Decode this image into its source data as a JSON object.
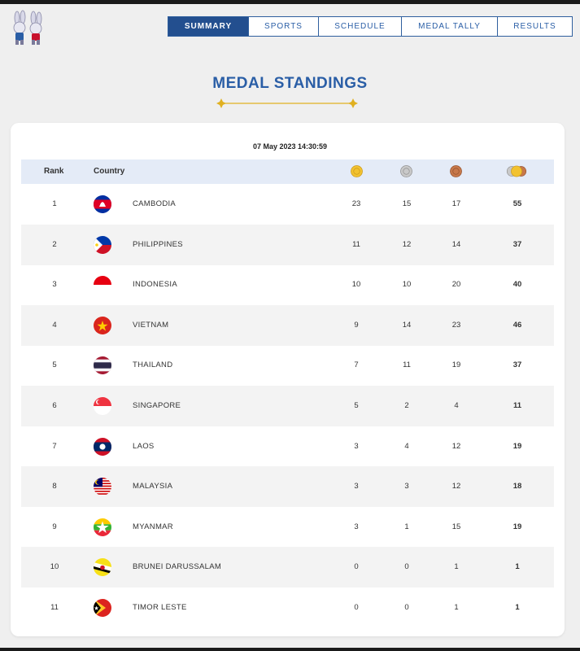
{
  "nav": {
    "tabs": [
      {
        "label": "SUMMARY",
        "active": true
      },
      {
        "label": "SPORTS",
        "active": false
      },
      {
        "label": "SCHEDULE",
        "active": false
      },
      {
        "label": "MEDAL TALLY",
        "active": false
      },
      {
        "label": "RESULTS",
        "active": false
      }
    ]
  },
  "page_title": "MEDAL STANDINGS",
  "timestamp": "07 May 2023  14:30:59",
  "table": {
    "headers": {
      "rank": "Rank",
      "country": "Country"
    },
    "medal_icons": [
      "gold-medal-icon",
      "silver-medal-icon",
      "bronze-medal-icon",
      "total-medals-icon"
    ],
    "rows": [
      {
        "rank": "1",
        "country": "CAMBODIA",
        "flag": "cambodia-flag-icon",
        "gold": "23",
        "silver": "15",
        "bronze": "17",
        "total": "55"
      },
      {
        "rank": "2",
        "country": "PHILIPPINES",
        "flag": "philippines-flag-icon",
        "gold": "11",
        "silver": "12",
        "bronze": "14",
        "total": "37"
      },
      {
        "rank": "3",
        "country": "INDONESIA",
        "flag": "indonesia-flag-icon",
        "gold": "10",
        "silver": "10",
        "bronze": "20",
        "total": "40"
      },
      {
        "rank": "4",
        "country": "VIETNAM",
        "flag": "vietnam-flag-icon",
        "gold": "9",
        "silver": "14",
        "bronze": "23",
        "total": "46"
      },
      {
        "rank": "5",
        "country": "THAILAND",
        "flag": "thailand-flag-icon",
        "gold": "7",
        "silver": "11",
        "bronze": "19",
        "total": "37"
      },
      {
        "rank": "6",
        "country": "SINGAPORE",
        "flag": "singapore-flag-icon",
        "gold": "5",
        "silver": "2",
        "bronze": "4",
        "total": "11"
      },
      {
        "rank": "7",
        "country": "LAOS",
        "flag": "laos-flag-icon",
        "gold": "3",
        "silver": "4",
        "bronze": "12",
        "total": "19"
      },
      {
        "rank": "8",
        "country": "MALAYSIA",
        "flag": "malaysia-flag-icon",
        "gold": "3",
        "silver": "3",
        "bronze": "12",
        "total": "18"
      },
      {
        "rank": "9",
        "country": "MYANMAR",
        "flag": "myanmar-flag-icon",
        "gold": "3",
        "silver": "1",
        "bronze": "15",
        "total": "19"
      },
      {
        "rank": "10",
        "country": "BRUNEI DARUSSALAM",
        "flag": "brunei-flag-icon",
        "gold": "0",
        "silver": "0",
        "bronze": "1",
        "total": "1"
      },
      {
        "rank": "11",
        "country": "TIMOR LESTE",
        "flag": "timor-leste-flag-icon",
        "gold": "0",
        "silver": "0",
        "bronze": "1",
        "total": "1"
      }
    ]
  },
  "colors": {
    "accent": "#2a5ea6",
    "nav_active": "#234f8f",
    "header_bg": "#e4ebf7",
    "gold": "#f2c230",
    "silver": "#b9b9b9",
    "bronze": "#c7784a"
  }
}
